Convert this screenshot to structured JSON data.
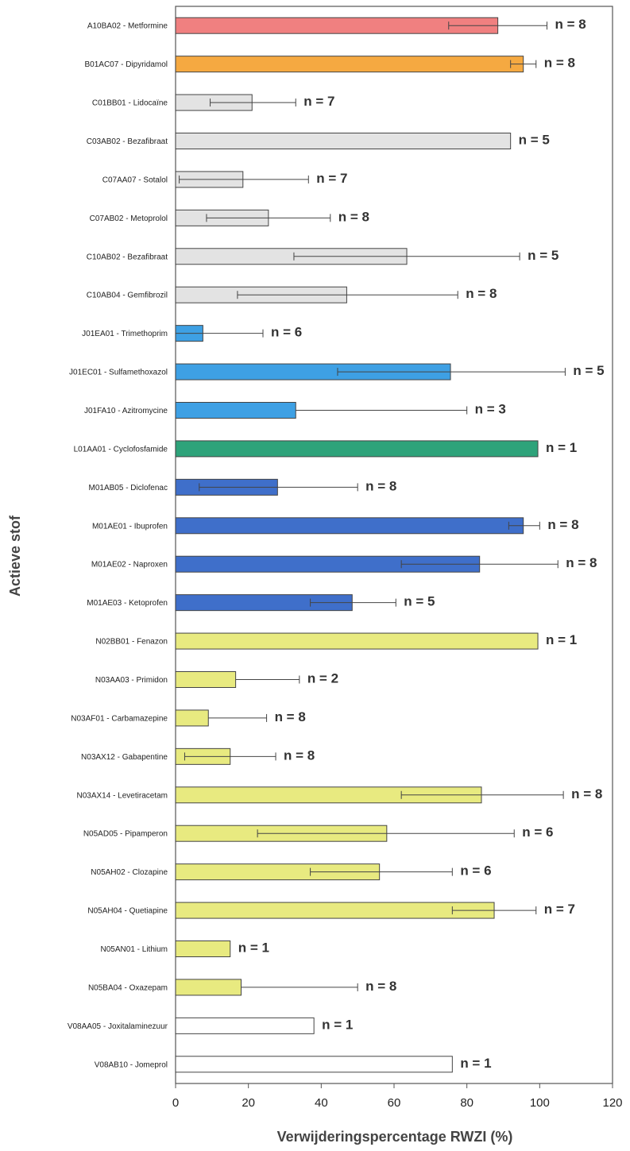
{
  "chart_data": {
    "type": "bar",
    "orientation": "horizontal",
    "xlabel": "Verwijderingspercentage RWZI (%)",
    "ylabel": "Actieve stof",
    "xlim": [
      0,
      120
    ],
    "xticks": [
      0,
      20,
      40,
      60,
      80,
      100,
      120
    ],
    "grid": false,
    "n_prefix": "n = ",
    "bars": [
      {
        "label": "A10BA02 - Metformine",
        "value": 88.5,
        "err_low": 75,
        "err_high": 102,
        "n": 8,
        "color": "#f08080"
      },
      {
        "label": "B01AC07 - Dipyridamol",
        "value": 95.5,
        "err_low": 92,
        "err_high": 99,
        "n": 8,
        "color": "#f5a941"
      },
      {
        "label": "C01BB01 - Lidocaïne",
        "value": 21,
        "err_low": 9.5,
        "err_high": 33,
        "n": 7,
        "color": "#e3e3e3"
      },
      {
        "label": "C03AB02 - Bezafibraat",
        "value": 92,
        "err_low": null,
        "err_high": null,
        "n": 5,
        "color": "#e3e3e3"
      },
      {
        "label": "C07AA07 - Sotalol",
        "value": 18.5,
        "err_low": 1,
        "err_high": 36.5,
        "n": 7,
        "color": "#e3e3e3"
      },
      {
        "label": "C07AB02 - Metoprolol",
        "value": 25.5,
        "err_low": 8.5,
        "err_high": 42.5,
        "n": 8,
        "color": "#e3e3e3"
      },
      {
        "label": "C10AB02 - Bezafibraat",
        "value": 63.5,
        "err_low": 32.5,
        "err_high": 94.5,
        "n": 5,
        "color": "#e3e3e3"
      },
      {
        "label": "C10AB04 - Gemfibrozil",
        "value": 47,
        "err_low": 17,
        "err_high": 77.5,
        "n": 8,
        "color": "#e3e3e3"
      },
      {
        "label": "J01EA01 - Trimethoprim",
        "value": 7.5,
        "err_low": 0,
        "err_high": 24,
        "n": 6,
        "color": "#3ea0e4"
      },
      {
        "label": "J01EC01 - Sulfamethoxazol",
        "value": 75.5,
        "err_low": 44.5,
        "err_high": 107,
        "n": 5,
        "color": "#3ea0e4"
      },
      {
        "label": "J01FA10 - Azitromycine",
        "value": 33,
        "err_low": null,
        "err_high": 80,
        "n": 3,
        "color": "#3ea0e4"
      },
      {
        "label": "L01AA01 - Cyclofosfamide",
        "value": 99.5,
        "err_low": null,
        "err_high": null,
        "n": 1,
        "color": "#2ea37a"
      },
      {
        "label": "M01AB05 - Diclofenac",
        "value": 28,
        "err_low": 6.5,
        "err_high": 50,
        "n": 8,
        "color": "#3f6fca"
      },
      {
        "label": "M01AE01 - Ibuprofen",
        "value": 95.5,
        "err_low": 91.5,
        "err_high": 100,
        "n": 8,
        "color": "#3f6fca"
      },
      {
        "label": "M01AE02 - Naproxen",
        "value": 83.5,
        "err_low": 62,
        "err_high": 105,
        "n": 8,
        "color": "#3f6fca"
      },
      {
        "label": "M01AE03 - Ketoprofen",
        "value": 48.5,
        "err_low": 37,
        "err_high": 60.5,
        "n": 5,
        "color": "#3f6fca"
      },
      {
        "label": "N02BB01 - Fenazon",
        "value": 99.5,
        "err_low": null,
        "err_high": null,
        "n": 1,
        "color": "#e8ea80"
      },
      {
        "label": "N03AA03 - Primidon",
        "value": 16.5,
        "err_low": null,
        "err_high": 34,
        "n": 2,
        "color": "#e8ea80"
      },
      {
        "label": "N03AF01 - Carbamazepine",
        "value": 9,
        "err_low": null,
        "err_high": 25,
        "n": 8,
        "color": "#e8ea80"
      },
      {
        "label": "N03AX12 - Gabapentine",
        "value": 15,
        "err_low": 2.5,
        "err_high": 27.5,
        "n": 8,
        "color": "#e8ea80"
      },
      {
        "label": "N03AX14 - Levetiracetam",
        "value": 84,
        "err_low": 62,
        "err_high": 106.5,
        "n": 8,
        "color": "#e8ea80"
      },
      {
        "label": "N05AD05 - Pipamperon",
        "value": 58,
        "err_low": 22.5,
        "err_high": 93,
        "n": 6,
        "color": "#e8ea80"
      },
      {
        "label": "N05AH02 - Clozapine",
        "value": 56,
        "err_low": 37,
        "err_high": 76,
        "n": 6,
        "color": "#e8ea80"
      },
      {
        "label": "N05AH04 - Quetiapine",
        "value": 87.5,
        "err_low": 76,
        "err_high": 99,
        "n": 7,
        "color": "#e8ea80"
      },
      {
        "label": "N05AN01 - Lithium",
        "value": 15,
        "err_low": null,
        "err_high": null,
        "n": 1,
        "color": "#e8ea80"
      },
      {
        "label": "N05BA04 - Oxazepam",
        "value": 18,
        "err_low": null,
        "err_high": 50,
        "n": 8,
        "color": "#e8ea80"
      },
      {
        "label": "V08AA05 - Joxitalaminezuur",
        "value": 38,
        "err_low": null,
        "err_high": null,
        "n": 1,
        "color": "#ffffff"
      },
      {
        "label": "V08AB10 - Jomeprol",
        "value": 76,
        "err_low": null,
        "err_high": null,
        "n": 1,
        "color": "#ffffff"
      }
    ]
  }
}
